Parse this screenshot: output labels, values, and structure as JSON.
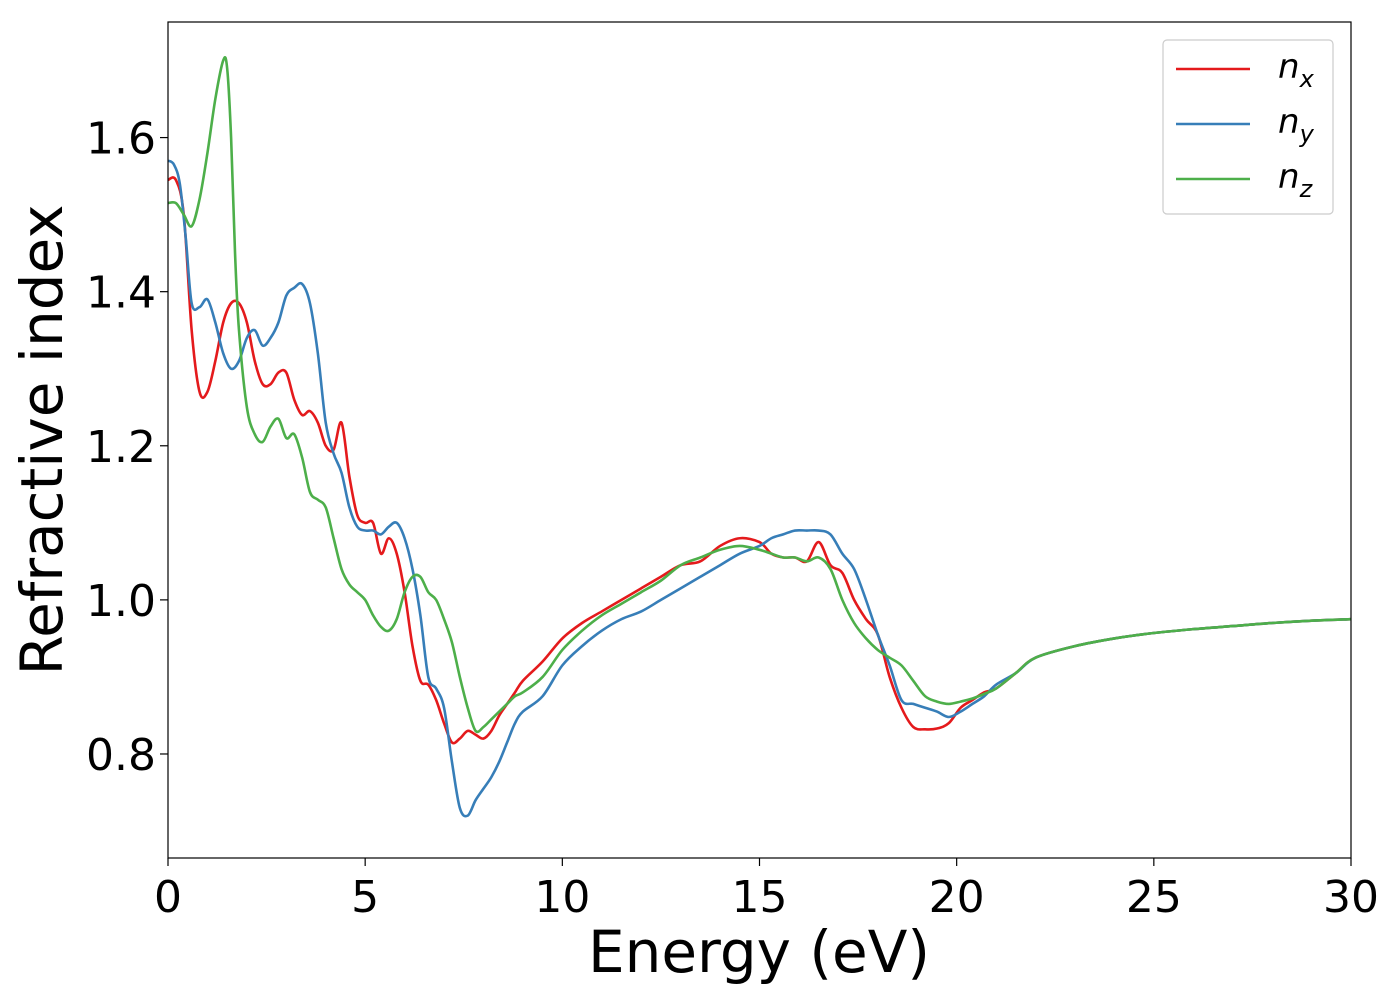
{
  "chart_data": {
    "type": "line",
    "title": "",
    "xlabel": "Energy (eV)",
    "ylabel": "Refractive index",
    "xlim": [
      0,
      30
    ],
    "ylim": [
      0.665,
      1.75
    ],
    "xticks": [
      0,
      5,
      10,
      15,
      20,
      25,
      30
    ],
    "xtick_labels": [
      "0",
      "5",
      "10",
      "15",
      "20",
      "25",
      "30"
    ],
    "yticks": [
      0.8,
      1.0,
      1.2,
      1.4,
      1.6
    ],
    "ytick_labels": [
      "0.8",
      "1.0",
      "1.2",
      "1.4",
      "1.6"
    ],
    "grid": false,
    "legend_position": "top-right",
    "series": [
      {
        "name": "n",
        "subscript": "x",
        "color": "#e41a1c",
        "x": [
          0,
          0.2,
          0.4,
          0.6,
          0.8,
          1.0,
          1.2,
          1.4,
          1.6,
          1.8,
          2.0,
          2.2,
          2.4,
          2.6,
          2.8,
          3.0,
          3.2,
          3.4,
          3.6,
          3.8,
          4.0,
          4.2,
          4.4,
          4.6,
          4.8,
          5.0,
          5.2,
          5.4,
          5.6,
          5.8,
          6.0,
          6.2,
          6.4,
          6.6,
          6.8,
          7.0,
          7.2,
          7.4,
          7.6,
          7.8,
          8.0,
          8.2,
          8.4,
          8.6,
          8.8,
          9.0,
          9.5,
          10.0,
          10.5,
          11.0,
          11.5,
          12.0,
          12.5,
          13.0,
          13.5,
          14.0,
          14.5,
          15.0,
          15.3,
          15.6,
          15.9,
          16.2,
          16.5,
          16.8,
          17.1,
          17.4,
          17.7,
          18.0,
          18.3,
          18.6,
          18.9,
          19.2,
          19.5,
          19.8,
          20.1,
          20.4,
          20.7,
          21.0,
          21.5,
          22.0,
          23.0,
          24.0,
          25.0,
          26.0,
          27.0,
          28.0,
          29.0,
          30.0
        ],
        "y": [
          1.545,
          1.545,
          1.5,
          1.35,
          1.27,
          1.27,
          1.31,
          1.36,
          1.385,
          1.385,
          1.36,
          1.31,
          1.28,
          1.28,
          1.295,
          1.295,
          1.26,
          1.24,
          1.245,
          1.23,
          1.2,
          1.195,
          1.23,
          1.16,
          1.11,
          1.1,
          1.1,
          1.06,
          1.08,
          1.06,
          1.01,
          0.94,
          0.895,
          0.89,
          0.87,
          0.84,
          0.815,
          0.82,
          0.83,
          0.825,
          0.82,
          0.83,
          0.85,
          0.865,
          0.88,
          0.895,
          0.92,
          0.95,
          0.97,
          0.985,
          1.0,
          1.015,
          1.03,
          1.045,
          1.05,
          1.07,
          1.08,
          1.075,
          1.06,
          1.055,
          1.055,
          1.05,
          1.075,
          1.045,
          1.035,
          1.0,
          0.975,
          0.955,
          0.9,
          0.86,
          0.835,
          0.832,
          0.833,
          0.84,
          0.86,
          0.87,
          0.88,
          0.885,
          0.905,
          0.925,
          0.94,
          0.95,
          0.957,
          0.962,
          0.966,
          0.97,
          0.973,
          0.975
        ]
      },
      {
        "name": "n",
        "subscript": "y",
        "color": "#377eb8",
        "x": [
          0,
          0.15,
          0.3,
          0.45,
          0.6,
          0.8,
          1.0,
          1.2,
          1.4,
          1.6,
          1.8,
          2.0,
          2.2,
          2.4,
          2.6,
          2.8,
          3.0,
          3.2,
          3.4,
          3.6,
          3.8,
          4.0,
          4.2,
          4.4,
          4.6,
          4.8,
          5.0,
          5.2,
          5.4,
          5.6,
          5.8,
          6.0,
          6.2,
          6.4,
          6.6,
          6.8,
          7.0,
          7.2,
          7.4,
          7.6,
          7.8,
          8.0,
          8.2,
          8.4,
          8.6,
          8.8,
          9.0,
          9.5,
          10.0,
          10.5,
          11.0,
          11.5,
          12.0,
          12.5,
          13.0,
          13.5,
          14.0,
          14.5,
          15.0,
          15.3,
          15.6,
          15.9,
          16.2,
          16.5,
          16.8,
          17.1,
          17.4,
          17.7,
          18.0,
          18.3,
          18.6,
          18.9,
          19.2,
          19.5,
          19.8,
          20.1,
          20.4,
          20.7,
          21.0,
          21.5,
          22.0,
          23.0,
          24.0,
          25.0,
          26.0,
          27.0,
          28.0,
          29.0,
          30.0
        ],
        "y": [
          1.57,
          1.565,
          1.54,
          1.47,
          1.385,
          1.38,
          1.39,
          1.36,
          1.32,
          1.3,
          1.31,
          1.34,
          1.35,
          1.33,
          1.34,
          1.36,
          1.395,
          1.405,
          1.41,
          1.385,
          1.32,
          1.23,
          1.19,
          1.165,
          1.12,
          1.095,
          1.09,
          1.09,
          1.085,
          1.095,
          1.1,
          1.08,
          1.04,
          0.98,
          0.9,
          0.885,
          0.86,
          0.79,
          0.73,
          0.72,
          0.74,
          0.755,
          0.77,
          0.79,
          0.815,
          0.84,
          0.855,
          0.875,
          0.915,
          0.94,
          0.96,
          0.975,
          0.985,
          1.0,
          1.015,
          1.03,
          1.045,
          1.06,
          1.07,
          1.08,
          1.085,
          1.09,
          1.09,
          1.09,
          1.085,
          1.06,
          1.04,
          1.0,
          0.955,
          0.915,
          0.87,
          0.865,
          0.86,
          0.855,
          0.848,
          0.855,
          0.865,
          0.875,
          0.89,
          0.905,
          0.925,
          0.94,
          0.95,
          0.957,
          0.962,
          0.966,
          0.97,
          0.973,
          0.975
        ]
      },
      {
        "name": "n",
        "subscript": "z",
        "color": "#4daf4a",
        "x": [
          0,
          0.2,
          0.4,
          0.6,
          0.8,
          1.0,
          1.2,
          1.4,
          1.5,
          1.6,
          1.7,
          1.8,
          2.0,
          2.2,
          2.4,
          2.6,
          2.8,
          3.0,
          3.2,
          3.4,
          3.6,
          3.8,
          4.0,
          4.2,
          4.4,
          4.6,
          4.8,
          5.0,
          5.2,
          5.4,
          5.6,
          5.8,
          6.0,
          6.2,
          6.4,
          6.6,
          6.8,
          7.0,
          7.2,
          7.4,
          7.6,
          7.8,
          8.0,
          8.2,
          8.4,
          8.6,
          8.8,
          9.0,
          9.5,
          10.0,
          10.5,
          11.0,
          11.5,
          12.0,
          12.5,
          13.0,
          13.5,
          14.0,
          14.5,
          15.0,
          15.3,
          15.6,
          15.9,
          16.2,
          16.5,
          16.8,
          17.1,
          17.4,
          17.7,
          18.0,
          18.3,
          18.6,
          18.9,
          19.2,
          19.5,
          19.8,
          20.1,
          20.4,
          20.7,
          21.0,
          21.5,
          22.0,
          23.0,
          24.0,
          25.0,
          26.0,
          27.0,
          28.0,
          29.0,
          30.0
        ],
        "y": [
          1.515,
          1.515,
          1.5,
          1.485,
          1.52,
          1.58,
          1.65,
          1.7,
          1.69,
          1.6,
          1.45,
          1.35,
          1.25,
          1.215,
          1.205,
          1.225,
          1.235,
          1.21,
          1.215,
          1.185,
          1.14,
          1.13,
          1.12,
          1.08,
          1.04,
          1.02,
          1.01,
          1.0,
          0.98,
          0.965,
          0.96,
          0.975,
          1.01,
          1.03,
          1.03,
          1.01,
          1.0,
          0.975,
          0.945,
          0.9,
          0.86,
          0.83,
          0.835,
          0.845,
          0.855,
          0.865,
          0.875,
          0.88,
          0.9,
          0.935,
          0.96,
          0.98,
          0.995,
          1.01,
          1.025,
          1.045,
          1.055,
          1.065,
          1.07,
          1.065,
          1.06,
          1.055,
          1.055,
          1.05,
          1.055,
          1.04,
          1.0,
          0.97,
          0.95,
          0.935,
          0.925,
          0.915,
          0.895,
          0.875,
          0.868,
          0.865,
          0.868,
          0.872,
          0.878,
          0.885,
          0.905,
          0.925,
          0.94,
          0.95,
          0.957,
          0.962,
          0.966,
          0.97,
          0.973,
          0.975
        ]
      }
    ]
  }
}
